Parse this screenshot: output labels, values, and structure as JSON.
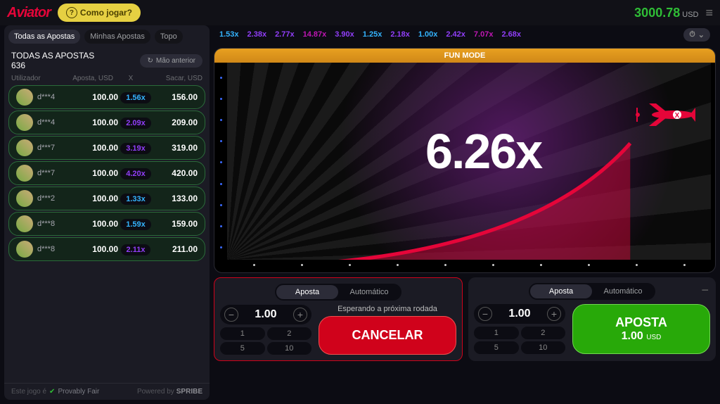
{
  "header": {
    "logo": "Aviator",
    "how_to_play": "Como jogar?",
    "balance": "3000.78",
    "currency": "USD"
  },
  "sidebar": {
    "tabs": {
      "all": "Todas as Apostas",
      "my": "Minhas Apostas",
      "top": "Topo"
    },
    "title": "TODAS AS APOSTAS",
    "count": "636",
    "prev_hand": "Mão anterior",
    "cols": {
      "user": "Utilizador",
      "bet": "Aposta, USD",
      "x": "X",
      "cash": "Sacar, USD"
    },
    "rows": [
      {
        "user": "d***4",
        "bet": "100.00",
        "mult": "1.56x",
        "mult_color": "#34b4ff",
        "cash": "156.00"
      },
      {
        "user": "d***4",
        "bet": "100.00",
        "mult": "2.09x",
        "mult_color": "#913ef8",
        "cash": "209.00"
      },
      {
        "user": "d***7",
        "bet": "100.00",
        "mult": "3.19x",
        "mult_color": "#913ef8",
        "cash": "319.00"
      },
      {
        "user": "d***7",
        "bet": "100.00",
        "mult": "4.20x",
        "mult_color": "#913ef8",
        "cash": "420.00"
      },
      {
        "user": "d***2",
        "bet": "100.00",
        "mult": "1.33x",
        "mult_color": "#34b4ff",
        "cash": "133.00"
      },
      {
        "user": "d***8",
        "bet": "100.00",
        "mult": "1.59x",
        "mult_color": "#34b4ff",
        "cash": "159.00"
      },
      {
        "user": "d***8",
        "bet": "100.00",
        "mult": "2.11x",
        "mult_color": "#913ef8",
        "cash": "211.00"
      }
    ]
  },
  "history": [
    {
      "v": "1.53x",
      "c": "#34b4ff"
    },
    {
      "v": "2.38x",
      "c": "#913ef8"
    },
    {
      "v": "2.77x",
      "c": "#913ef8"
    },
    {
      "v": "14.87x",
      "c": "#c017b4"
    },
    {
      "v": "3.90x",
      "c": "#913ef8"
    },
    {
      "v": "1.25x",
      "c": "#34b4ff"
    },
    {
      "v": "2.18x",
      "c": "#913ef8"
    },
    {
      "v": "1.00x",
      "c": "#34b4ff"
    },
    {
      "v": "2.42x",
      "c": "#913ef8"
    },
    {
      "v": "7.07x",
      "c": "#c017b4"
    },
    {
      "v": "2.68x",
      "c": "#913ef8"
    }
  ],
  "game": {
    "fun_mode": "FUN MODE",
    "multiplier": "6.26x",
    "curve_color": "#e50539",
    "fill_color": "rgba(229,5,57,0.4)"
  },
  "bet_tabs": {
    "bet": "Aposta",
    "auto": "Automático"
  },
  "quick_amounts": [
    "1",
    "2",
    "5",
    "10"
  ],
  "panel1": {
    "amount": "1.00",
    "waiting": "Esperando a próxima rodada",
    "cancel": "CANCELAR"
  },
  "panel2": {
    "amount": "1.00",
    "bet_label": "APOSTA",
    "bet_amount": "1.00",
    "bet_currency": "USD"
  },
  "footer": {
    "this_game_is": "Este jogo é",
    "provably_fair": "Provably Fair",
    "powered_by": "Powered by",
    "brand": "SPRIBE"
  }
}
